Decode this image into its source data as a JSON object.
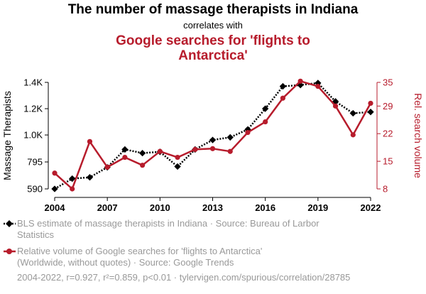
{
  "header": {
    "title": "The number of massage therapists in Indiana",
    "subtitle": "correlates with",
    "title2": "Google searches for 'flights to Antarctica'"
  },
  "chart_data": {
    "type": "line",
    "x": [
      2004,
      2005,
      2006,
      2007,
      2008,
      2009,
      2010,
      2011,
      2012,
      2013,
      2014,
      2015,
      2016,
      2017,
      2018,
      2019,
      2020,
      2021,
      2022
    ],
    "x_ticks": [
      "2004",
      "2007",
      "2010",
      "2013",
      "2016",
      "2019",
      "2022"
    ],
    "x_tick_values": [
      2004,
      2007,
      2010,
      2013,
      2016,
      2019,
      2022
    ],
    "xlim": [
      2004,
      2022
    ],
    "series": [
      {
        "name": "BLS estimate of massage therapists in Indiana · Source: Bureau of Larbor Statistics",
        "axis": "left",
        "color": "#000000",
        "style": "dotted",
        "marker": "diamond",
        "values": [
          590,
          668,
          678,
          754,
          890,
          862,
          872,
          760,
          890,
          962,
          982,
          1042,
          1200,
          1370,
          1380,
          1395,
          1255,
          1165,
          1175
        ]
      },
      {
        "name": "Relative volume of Google searches for 'flights to Antarctica' (Worldwide, without quotes) · Source: Google Trends",
        "axis": "right",
        "color": "#b71c2c",
        "style": "solid",
        "marker": "circle",
        "values": [
          12,
          8,
          20,
          13.5,
          16,
          14,
          17.5,
          16,
          18,
          18.2,
          17.5,
          22.3,
          25,
          31,
          35.3,
          34,
          29,
          21.7,
          29.7
        ]
      }
    ],
    "left_axis": {
      "label": "Massage Therapists",
      "ticks": [
        "590",
        "795",
        "1.0K",
        "1.2K",
        "1.4K"
      ],
      "tick_values": [
        590,
        795,
        1000,
        1200,
        1400
      ],
      "ylim": [
        590,
        1400
      ]
    },
    "right_axis": {
      "label": "Rel. search volume",
      "ticks": [
        "8",
        "15",
        "22",
        "29",
        "35"
      ],
      "tick_values": [
        8,
        15,
        22,
        29,
        35
      ],
      "ylim": [
        8,
        35
      ]
    },
    "grid": false,
    "legend_position": "bottom"
  },
  "legend": {
    "item1": [
      "BLS estimate of massage therapists in Indiana · Source: Bureau of Larbor",
      "Statistics"
    ],
    "item2": [
      "Relative volume of Google searches for 'flights to Antarctica'",
      "(Worldwide, without quotes) · Source: Google Trends"
    ]
  },
  "footer": "2004-2022, r=0.927, r²=0.859, p<0.01 · tylervigen.com/spurious/correlation/28785"
}
